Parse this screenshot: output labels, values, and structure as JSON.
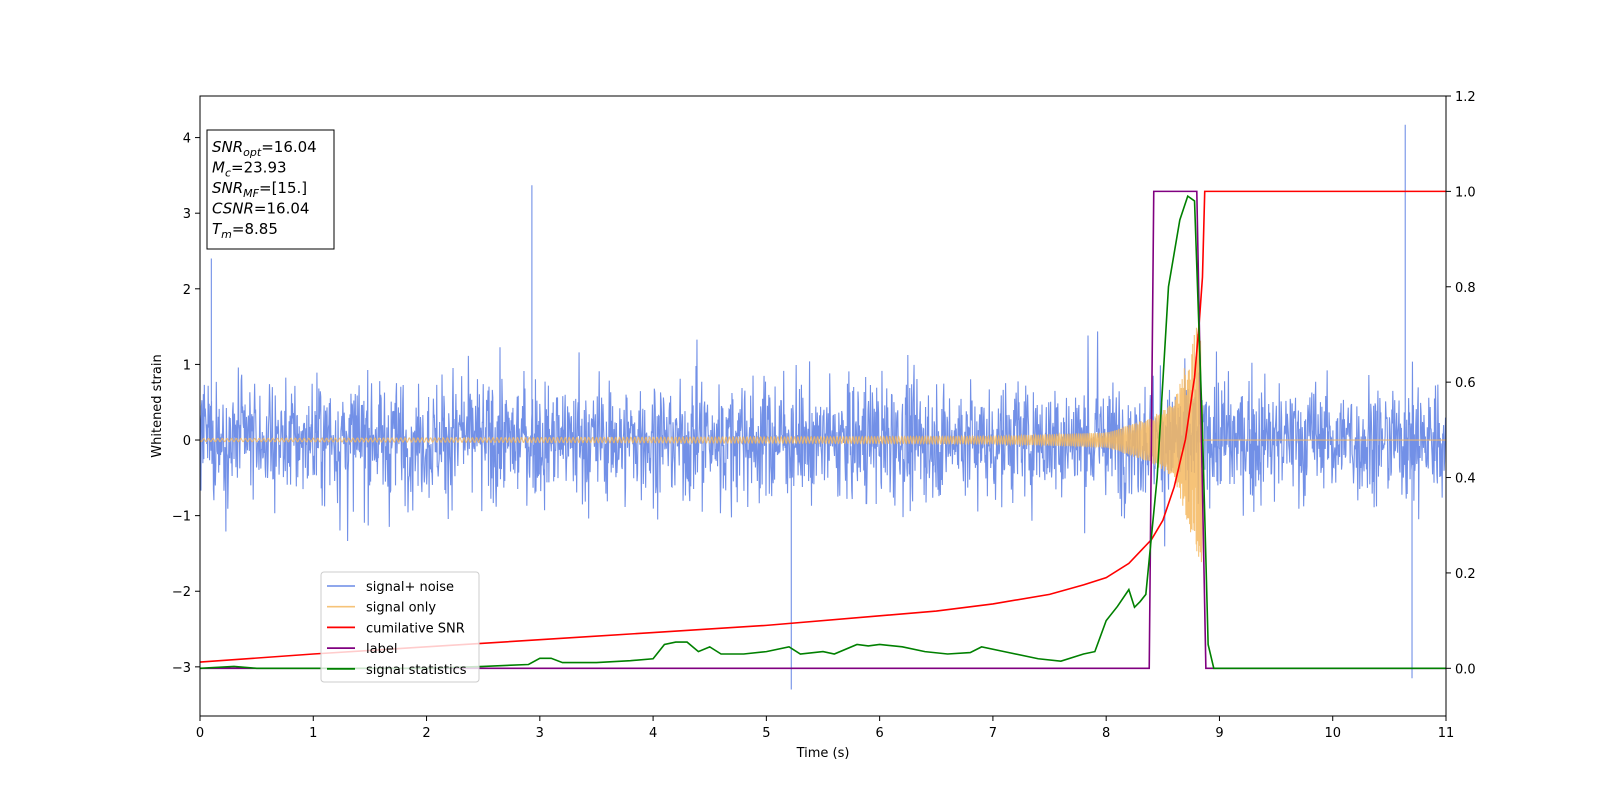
{
  "chart_data": {
    "type": "line",
    "xlabel": "Time (s)",
    "ylabel": "Whitened strain",
    "xlim": [
      0,
      11
    ],
    "ylim": [
      -3.65,
      4.55
    ],
    "y2lim": [
      -0.1,
      1.2
    ],
    "x_ticks": [
      "0",
      "1",
      "2",
      "3",
      "4",
      "5",
      "6",
      "7",
      "8",
      "9",
      "10",
      "11"
    ],
    "y_ticks": [
      "4",
      "3",
      "2",
      "1",
      "0",
      "−1",
      "−2",
      "−3"
    ],
    "y2_ticks": [
      "1.2",
      "1.0",
      "0.8",
      "0.6",
      "0.4",
      "0.2",
      "0.0"
    ],
    "info_box": [
      {
        "sym": "SNR",
        "sub": "opt",
        "value": "=16.04"
      },
      {
        "sym": "M",
        "sub": "c",
        "value": "=23.93"
      },
      {
        "sym": "SNR",
        "sub": "MF",
        "value": "=[15.]"
      },
      {
        "sym": "CSNR",
        "sub": "",
        "value": "=16.04"
      },
      {
        "sym": "T",
        "sub": "m",
        "value": "=8.85"
      }
    ],
    "legend_position": "lower-left",
    "series": [
      {
        "name": "signal+ noise",
        "color": "#6a8ae6",
        "axis": "left",
        "style": "noise",
        "noise_band": [
          -1.5,
          1.5
        ],
        "extreme_spikes": [
          [
            0.1,
            2.4
          ],
          [
            2.93,
            3.37
          ],
          [
            5.22,
            -3.3
          ],
          [
            10.64,
            4.17
          ],
          [
            10.7,
            -3.15
          ]
        ]
      },
      {
        "name": "signal only",
        "color": "#f5b860",
        "axis": "left",
        "style": "chirp",
        "chirp_end_time": 8.85,
        "amplitude": [
          [
            0,
            0.02
          ],
          [
            7.0,
            0.05
          ],
          [
            8.0,
            0.1
          ],
          [
            8.4,
            0.3
          ],
          [
            8.6,
            0.5
          ],
          [
            8.85,
            1.75
          ]
        ]
      },
      {
        "name": "cumilative SNR",
        "color": "#ff0000",
        "axis": "right",
        "points": [
          [
            0,
            0.013
          ],
          [
            1,
            0.03
          ],
          [
            2,
            0.045
          ],
          [
            3,
            0.06
          ],
          [
            4,
            0.075
          ],
          [
            5,
            0.09
          ],
          [
            6,
            0.11
          ],
          [
            6.5,
            0.12
          ],
          [
            7,
            0.135
          ],
          [
            7.5,
            0.155
          ],
          [
            7.8,
            0.175
          ],
          [
            8.0,
            0.19
          ],
          [
            8.2,
            0.22
          ],
          [
            8.4,
            0.27
          ],
          [
            8.5,
            0.31
          ],
          [
            8.6,
            0.38
          ],
          [
            8.7,
            0.48
          ],
          [
            8.78,
            0.61
          ],
          [
            8.82,
            0.72
          ],
          [
            8.85,
            0.82
          ],
          [
            8.87,
            1.0
          ],
          [
            11,
            1.0
          ]
        ]
      },
      {
        "name": "label",
        "color": "#800080",
        "axis": "right",
        "points": [
          [
            0,
            0.0
          ],
          [
            8.38,
            0.0
          ],
          [
            8.42,
            1.0
          ],
          [
            8.8,
            1.0
          ],
          [
            8.88,
            0.0
          ],
          [
            11,
            0.0
          ]
        ]
      },
      {
        "name": "signal statistics",
        "color": "#008000",
        "axis": "right",
        "points": [
          [
            0,
            0.0
          ],
          [
            0.3,
            0.004
          ],
          [
            0.5,
            0.0
          ],
          [
            1,
            0.0
          ],
          [
            2,
            0.0
          ],
          [
            2.5,
            0.004
          ],
          [
            2.9,
            0.008
          ],
          [
            3.0,
            0.021
          ],
          [
            3.1,
            0.021
          ],
          [
            3.2,
            0.012
          ],
          [
            3.5,
            0.012
          ],
          [
            3.8,
            0.016
          ],
          [
            4.0,
            0.02
          ],
          [
            4.1,
            0.05
          ],
          [
            4.2,
            0.055
          ],
          [
            4.3,
            0.055
          ],
          [
            4.4,
            0.035
          ],
          [
            4.5,
            0.045
          ],
          [
            4.6,
            0.03
          ],
          [
            4.8,
            0.03
          ],
          [
            5.0,
            0.035
          ],
          [
            5.2,
            0.045
          ],
          [
            5.3,
            0.03
          ],
          [
            5.5,
            0.035
          ],
          [
            5.6,
            0.03
          ],
          [
            5.8,
            0.05
          ],
          [
            5.9,
            0.047
          ],
          [
            6.0,
            0.05
          ],
          [
            6.2,
            0.045
          ],
          [
            6.4,
            0.035
          ],
          [
            6.6,
            0.03
          ],
          [
            6.8,
            0.033
          ],
          [
            6.9,
            0.045
          ],
          [
            7.1,
            0.035
          ],
          [
            7.4,
            0.02
          ],
          [
            7.6,
            0.015
          ],
          [
            7.8,
            0.03
          ],
          [
            7.9,
            0.035
          ],
          [
            8.0,
            0.1
          ],
          [
            8.1,
            0.13
          ],
          [
            8.2,
            0.165
          ],
          [
            8.25,
            0.128
          ],
          [
            8.3,
            0.14
          ],
          [
            8.35,
            0.155
          ],
          [
            8.45,
            0.4
          ],
          [
            8.55,
            0.8
          ],
          [
            8.65,
            0.94
          ],
          [
            8.72,
            0.99
          ],
          [
            8.78,
            0.98
          ],
          [
            8.85,
            0.5
          ],
          [
            8.9,
            0.05
          ],
          [
            8.95,
            0.0
          ],
          [
            11,
            0.0
          ]
        ]
      }
    ]
  }
}
